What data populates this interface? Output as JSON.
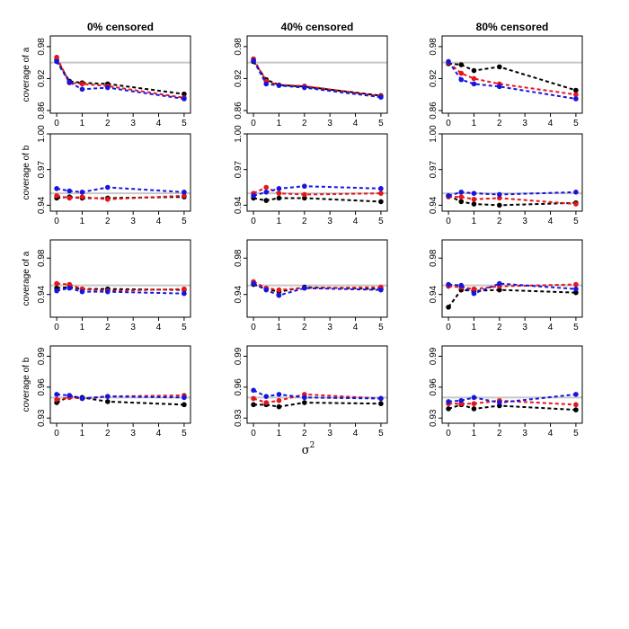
{
  "chart_data": {
    "type": "line",
    "figure_xlabel": "σ",
    "figure_xlabel_sup": "2",
    "nominal_line_color": "#c8c8c8",
    "series_colors": {
      "black": "#000000",
      "red": "#e8141b",
      "blue": "#1515e0"
    },
    "x": [
      0,
      0.5,
      1,
      2,
      5
    ],
    "xticks": [
      "0",
      "1",
      "2",
      "3",
      "4",
      "5"
    ],
    "columns": [
      "0% censored",
      "40% censored",
      "80% censored"
    ],
    "rows": [
      {
        "ylabel": "coverage of a",
        "ylim": [
          0.855,
          1.0
        ],
        "yticks": [
          0.86,
          0.92,
          0.98
        ],
        "ytick_labels": [
          "0.86",
          "0.92",
          "0.98"
        ],
        "nominal": 0.95,
        "panels": [
          {
            "series": [
              {
                "name": "black",
                "values": [
                  0.955,
                  0.915,
                  0.912,
                  0.91,
                  0.891
                ]
              },
              {
                "name": "red",
                "values": [
                  0.96,
                  0.912,
                  0.91,
                  0.906,
                  0.884
                ]
              },
              {
                "name": "blue",
                "values": [
                  0.952,
                  0.913,
                  0.9,
                  0.903,
                  0.882
                ]
              }
            ]
          },
          {
            "series": [
              {
                "name": "black",
                "values": [
                  0.952,
                  0.918,
                  0.908,
                  0.905,
                  0.888
                ]
              },
              {
                "name": "red",
                "values": [
                  0.957,
                  0.915,
                  0.908,
                  0.906,
                  0.887
                ]
              },
              {
                "name": "blue",
                "values": [
                  0.954,
                  0.91,
                  0.907,
                  0.903,
                  0.885
                ]
              }
            ]
          },
          {
            "series": [
              {
                "name": "black",
                "values": [
                  0.948,
                  0.946,
                  0.935,
                  0.942,
                  0.898
                ]
              },
              {
                "name": "red",
                "values": [
                  0.95,
                  0.93,
                  0.92,
                  0.91,
                  0.89
                ]
              },
              {
                "name": "blue",
                "values": [
                  0.952,
                  0.918,
                  0.91,
                  0.905,
                  0.882
                ]
              }
            ]
          }
        ]
      },
      {
        "ylabel": "coverage of b",
        "ylim": [
          0.935,
          1.0
        ],
        "yticks": [
          0.94,
          0.97,
          1.0
        ],
        "ytick_labels": [
          "0.94",
          "0.97",
          "1.00"
        ],
        "nominal": 0.95,
        "panels": [
          {
            "series": [
              {
                "name": "black",
                "values": [
                  0.946,
                  0.947,
                  0.946,
                  0.946,
                  0.947
                ]
              },
              {
                "name": "red",
                "values": [
                  0.948,
                  0.946,
                  0.947,
                  0.945,
                  0.948
                ]
              },
              {
                "name": "blue",
                "values": [
                  0.954,
                  0.952,
                  0.951,
                  0.955,
                  0.951
                ]
              }
            ]
          },
          {
            "series": [
              {
                "name": "black",
                "values": [
                  0.946,
                  0.944,
                  0.946,
                  0.946,
                  0.943
                ]
              },
              {
                "name": "red",
                "values": [
                  0.95,
                  0.955,
                  0.95,
                  0.949,
                  0.95
                ]
              },
              {
                "name": "blue",
                "values": [
                  0.948,
                  0.951,
                  0.954,
                  0.956,
                  0.954
                ]
              }
            ]
          },
          {
            "series": [
              {
                "name": "black",
                "values": [
                  0.948,
                  0.943,
                  0.941,
                  0.94,
                  0.942
                ]
              },
              {
                "name": "red",
                "values": [
                  0.947,
                  0.947,
                  0.945,
                  0.946,
                  0.941
                ]
              },
              {
                "name": "blue",
                "values": [
                  0.948,
                  0.951,
                  0.95,
                  0.949,
                  0.951
                ]
              }
            ]
          }
        ]
      },
      {
        "ylabel": "coverage of a",
        "ylim": [
          0.915,
          1.0
        ],
        "yticks": [
          0.94,
          0.98
        ],
        "ytick_labels": [
          "0.94",
          "0.98"
        ],
        "nominal": 0.95,
        "panels": [
          {
            "series": [
              {
                "name": "black",
                "values": [
                  0.947,
                  0.948,
                  0.946,
                  0.946,
                  0.945
                ]
              },
              {
                "name": "red",
                "values": [
                  0.952,
                  0.951,
                  0.946,
                  0.944,
                  0.946
                ]
              },
              {
                "name": "blue",
                "values": [
                  0.944,
                  0.947,
                  0.943,
                  0.943,
                  0.941
                ]
              }
            ]
          },
          {
            "series": [
              {
                "name": "black",
                "values": [
                  0.951,
                  0.946,
                  0.943,
                  0.948,
                  0.946
                ]
              },
              {
                "name": "red",
                "values": [
                  0.954,
                  0.947,
                  0.945,
                  0.947,
                  0.948
                ]
              },
              {
                "name": "blue",
                "values": [
                  0.952,
                  0.945,
                  0.939,
                  0.947,
                  0.945
                ]
              }
            ]
          },
          {
            "series": [
              {
                "name": "black",
                "values": [
                  0.926,
                  0.945,
                  0.944,
                  0.945,
                  0.942
                ]
              },
              {
                "name": "red",
                "values": [
                  0.949,
                  0.948,
                  0.946,
                  0.949,
                  0.951
                ]
              },
              {
                "name": "blue",
                "values": [
                  0.951,
                  0.95,
                  0.941,
                  0.952,
                  0.946
                ]
              }
            ]
          }
        ]
      },
      {
        "ylabel": "coverage of b",
        "ylim": [
          0.925,
          1.0
        ],
        "yticks": [
          0.93,
          0.96,
          0.99
        ],
        "ytick_labels": [
          "0.93",
          "0.96",
          "0.99"
        ],
        "nominal": 0.95,
        "panels": [
          {
            "series": [
              {
                "name": "black",
                "values": [
                  0.945,
                  0.951,
                  0.95,
                  0.946,
                  0.943
                ]
              },
              {
                "name": "red",
                "values": [
                  0.948,
                  0.95,
                  0.949,
                  0.951,
                  0.952
                ]
              },
              {
                "name": "blue",
                "values": [
                  0.953,
                  0.952,
                  0.949,
                  0.951,
                  0.95
                ]
              }
            ]
          },
          {
            "series": [
              {
                "name": "black",
                "values": [
                  0.943,
                  0.943,
                  0.941,
                  0.945,
                  0.944
                ]
              },
              {
                "name": "red",
                "values": [
                  0.949,
                  0.945,
                  0.947,
                  0.953,
                  0.949
                ]
              },
              {
                "name": "blue",
                "values": [
                  0.957,
                  0.951,
                  0.953,
                  0.95,
                  0.949
                ]
              }
            ]
          },
          {
            "series": [
              {
                "name": "black",
                "values": [
                  0.939,
                  0.943,
                  0.939,
                  0.942,
                  0.938
                ]
              },
              {
                "name": "red",
                "values": [
                  0.944,
                  0.944,
                  0.944,
                  0.947,
                  0.943
                ]
              },
              {
                "name": "blue",
                "values": [
                  0.946,
                  0.947,
                  0.95,
                  0.945,
                  0.953
                ]
              }
            ]
          }
        ]
      }
    ]
  }
}
